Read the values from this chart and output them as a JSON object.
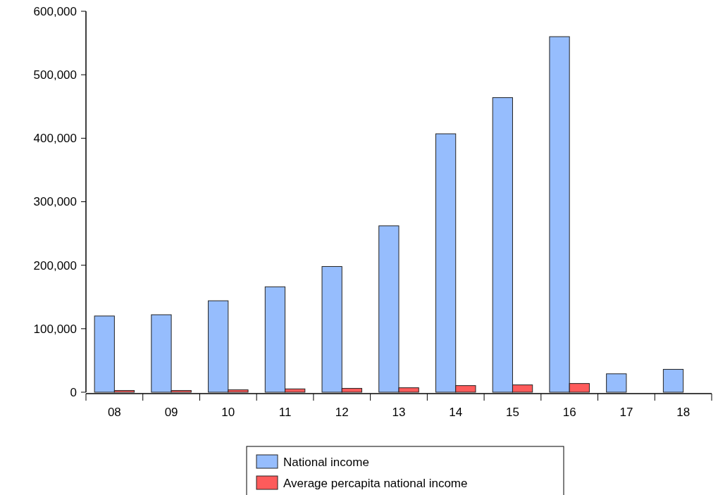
{
  "chart_data": {
    "type": "bar",
    "categories": [
      "08",
      "09",
      "10",
      "11",
      "12",
      "13",
      "14",
      "15",
      "16",
      "17",
      "18"
    ],
    "series": [
      {
        "name": "National income",
        "color": "#96bdfd",
        "values": [
          120000,
          122000,
          144000,
          166000,
          198000,
          262000,
          407000,
          464000,
          560000,
          29000,
          36000
        ]
      },
      {
        "name": "Average percapita national income",
        "color": "#fe5b5b",
        "values": [
          2700,
          2700,
          3700,
          5200,
          6000,
          7000,
          10400,
          11500,
          13700,
          null,
          null
        ]
      }
    ],
    "ylim": [
      0,
      600000
    ],
    "yticks": [
      {
        "value": 0,
        "label": "0"
      },
      {
        "value": 100000,
        "label": "100,000"
      },
      {
        "value": 200000,
        "label": "200,000"
      },
      {
        "value": 300000,
        "label": "300,000"
      },
      {
        "value": 400000,
        "label": "400,000"
      },
      {
        "value": 500000,
        "label": "500,000"
      },
      {
        "value": 600000,
        "label": "600,000"
      }
    ],
    "grid": false,
    "legend": "bottom"
  }
}
